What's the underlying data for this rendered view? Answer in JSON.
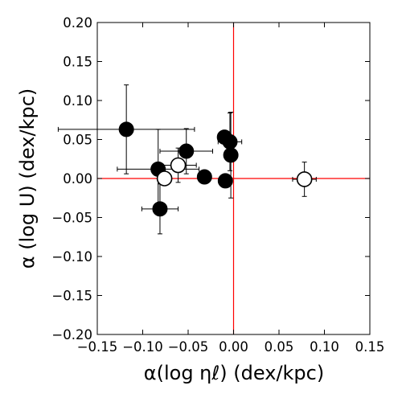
{
  "chart_data": {
    "type": "scatter",
    "title": "",
    "xlabel": "α(log ηℓ) (dex/kpc)",
    "ylabel": "α (log U) (dex/kpc)",
    "xlim": [
      -0.15,
      0.15
    ],
    "ylim": [
      -0.2,
      0.2
    ],
    "xticks": [
      -0.15,
      -0.1,
      -0.05,
      0.0,
      0.05,
      0.1,
      0.15
    ],
    "xtick_labels": [
      "−0.15",
      "−0.10",
      "−0.05",
      "0.00",
      "0.05",
      "0.10",
      "0.15"
    ],
    "yticks": [
      -0.2,
      -0.15,
      -0.1,
      -0.05,
      0.0,
      0.05,
      0.1,
      0.15,
      0.2
    ],
    "ytick_labels": [
      "−0.20",
      "−0.15",
      "−0.10",
      "−0.05",
      "0.00",
      "0.05",
      "0.10",
      "0.15",
      "0.20"
    ],
    "grid": false,
    "reference_lines": [
      {
        "orientation": "vertical",
        "value": 0.0,
        "color": "#ff0000"
      },
      {
        "orientation": "horizontal",
        "value": 0.0,
        "color": "#ff0000"
      }
    ],
    "series": [
      {
        "marker": "filled-circle",
        "color": "#000000",
        "points": [
          {
            "x": -0.118,
            "y": 0.063,
            "xerr": 0.075,
            "yerr": 0.057
          },
          {
            "x": -0.083,
            "y": 0.012,
            "xerr": 0.045,
            "yerr": 0.051
          },
          {
            "x": -0.081,
            "y": -0.039,
            "xerr": 0.02,
            "yerr": 0.032
          },
          {
            "x": -0.052,
            "y": 0.035,
            "xerr": 0.029,
            "yerr": 0.029
          },
          {
            "x": -0.032,
            "y": 0.002,
            "xerr": 0.0,
            "yerr": 0.0
          },
          {
            "x": -0.01,
            "y": 0.053,
            "xerr": 0.0,
            "yerr": 0.0
          },
          {
            "x": -0.009,
            "y": -0.003,
            "xerr": 0.0,
            "yerr": 0.0
          },
          {
            "x": -0.004,
            "y": 0.047,
            "xerr": 0.013,
            "yerr": 0.037
          },
          {
            "x": -0.003,
            "y": 0.03,
            "xerr": 0.0,
            "yerr": 0.055
          }
        ]
      },
      {
        "marker": "open-circle",
        "color": "#000000",
        "points": [
          {
            "x": -0.076,
            "y": 0.0,
            "xerr": 0.0,
            "yerr": 0.0
          },
          {
            "x": -0.061,
            "y": 0.017,
            "xerr": 0.02,
            "yerr": 0.022
          },
          {
            "x": 0.078,
            "y": -0.001,
            "xerr": 0.013,
            "yerr": 0.022
          }
        ]
      }
    ]
  }
}
